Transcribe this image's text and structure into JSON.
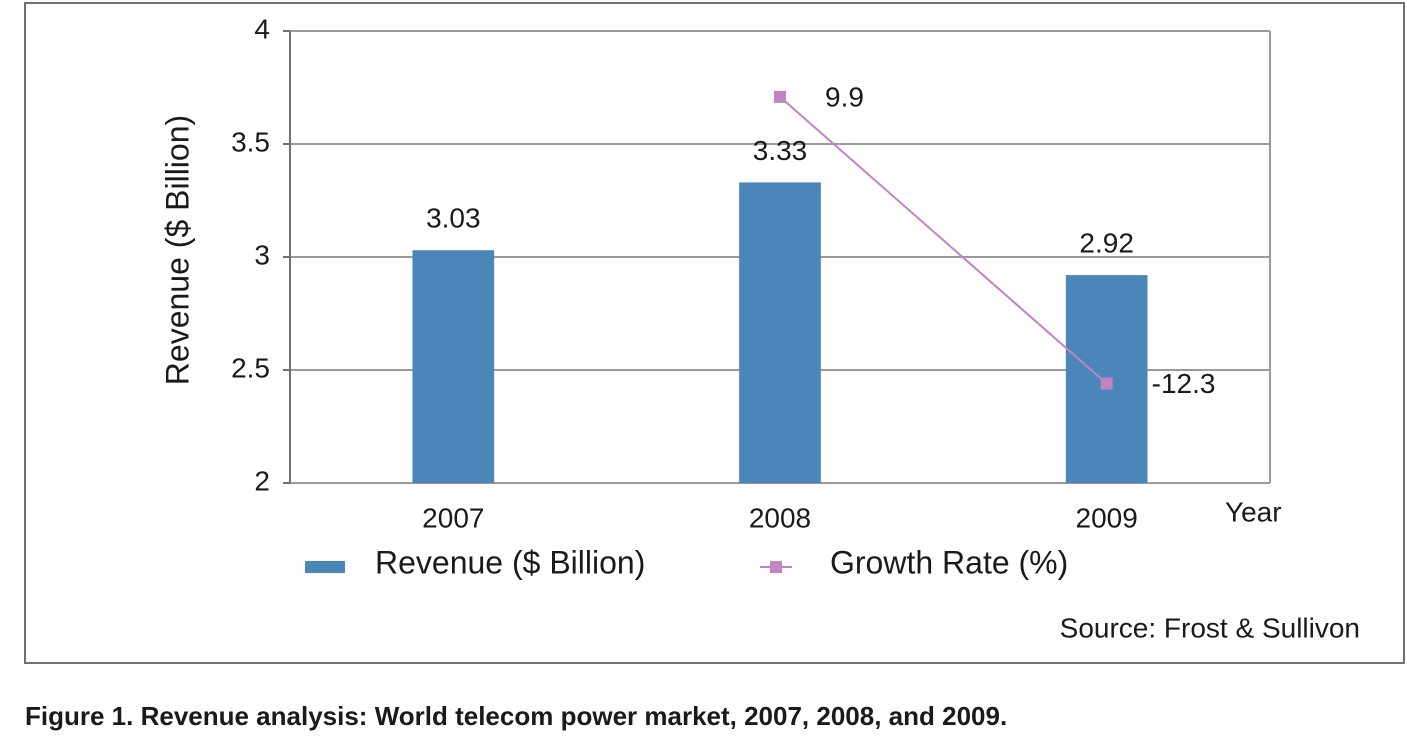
{
  "chart_data": {
    "type": "bar",
    "title": "Figure 1. Revenue analysis: World telecom power market, 2007, 2008, and 2009.",
    "y_label": "Revenue ($ Billion)",
    "x_label": "Year",
    "source": "Source: Frost & Sullivon",
    "categories": [
      "2007",
      "2008",
      "2009"
    ],
    "series": [
      {
        "name": "Revenue ($ Billion)",
        "type": "bar",
        "color": "#4a86b8",
        "values": [
          3.03,
          3.33,
          2.92
        ]
      },
      {
        "name": "Growth Rate (%)",
        "type": "line",
        "axis": "y2",
        "color": "#c084c4",
        "values": [
          null,
          9.9,
          -12.3
        ]
      }
    ],
    "ylim": [
      2,
      4
    ],
    "yticks": [
      2,
      2.5,
      3,
      3.5,
      4
    ],
    "y2lim": [
      -20,
      15
    ],
    "grid": true,
    "legend": "bottom"
  }
}
